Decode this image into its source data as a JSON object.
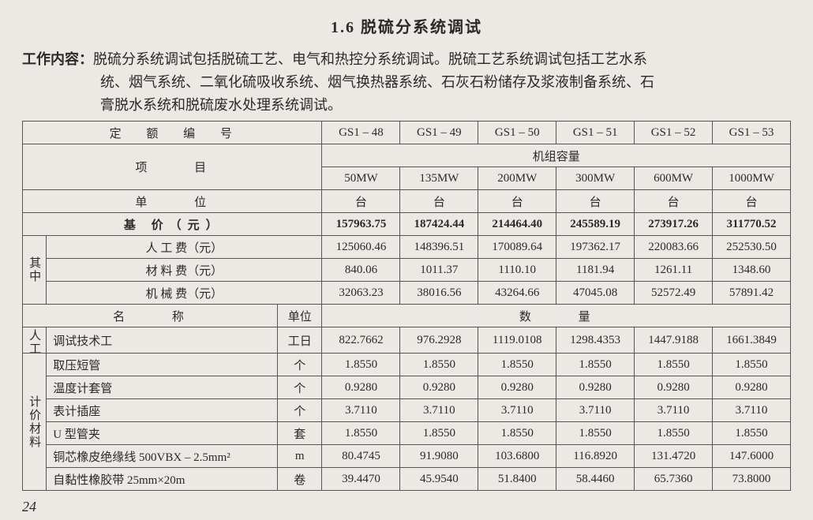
{
  "title": "1.6  脱硫分系统调试",
  "desc_label": "工作内容：",
  "desc_line1": "脱硫分系统调试包括脱硫工艺、电气和热控分系统调试。脱硫工艺系统调试包括工艺水系",
  "desc_line2": "统、烟气系统、二氧化硫吸收系统、烟气换热器系统、石灰石粉储存及浆液制备系统、石",
  "desc_line3": "膏脱水系统和脱硫废水处理系统调试。",
  "header": {
    "quota_no": "定 额 编 号",
    "project": "项    目",
    "unit": "单    位",
    "base_price": "基   价（元）",
    "capacity": "机组容量",
    "name": "名    称",
    "unit2": "单位",
    "quantity": "数    量"
  },
  "side": {
    "qizhong": "其中",
    "rengong": "人工",
    "jijia": "计价材料"
  },
  "codes": [
    "GS1 – 48",
    "GS1 – 49",
    "GS1 – 50",
    "GS1 – 51",
    "GS1 – 52",
    "GS1 – 53"
  ],
  "capacities": [
    "50MW",
    "135MW",
    "200MW",
    "300MW",
    "600MW",
    "1000MW"
  ],
  "unit_tai": "台",
  "base": [
    "157963.75",
    "187424.44",
    "214464.40",
    "245589.19",
    "273917.26",
    "311770.52"
  ],
  "costs": {
    "labor_label": "人  工  费（元）",
    "material_label": "材  料  费（元）",
    "machine_label": "机  械  费（元）",
    "labor": [
      "125060.46",
      "148396.51",
      "170089.64",
      "197362.17",
      "220083.66",
      "252530.50"
    ],
    "material": [
      "840.06",
      "1011.37",
      "1110.10",
      "1181.94",
      "1261.11",
      "1348.60"
    ],
    "machine": [
      "32063.23",
      "38016.56",
      "43264.66",
      "47045.08",
      "52572.49",
      "57891.42"
    ]
  },
  "items": [
    {
      "cat": "labor",
      "name": "调试技术工",
      "unit": "工日",
      "v": [
        "822.7662",
        "976.2928",
        "1119.0108",
        "1298.4353",
        "1447.9188",
        "1661.3849"
      ]
    },
    {
      "cat": "mat",
      "name": "取压短管",
      "unit": "个",
      "v": [
        "1.8550",
        "1.8550",
        "1.8550",
        "1.8550",
        "1.8550",
        "1.8550"
      ]
    },
    {
      "cat": "mat",
      "name": "温度计套管",
      "unit": "个",
      "v": [
        "0.9280",
        "0.9280",
        "0.9280",
        "0.9280",
        "0.9280",
        "0.9280"
      ]
    },
    {
      "cat": "mat",
      "name": "表计插座",
      "unit": "个",
      "v": [
        "3.7110",
        "3.7110",
        "3.7110",
        "3.7110",
        "3.7110",
        "3.7110"
      ]
    },
    {
      "cat": "mat",
      "name": "U 型管夹",
      "unit": "套",
      "v": [
        "1.8550",
        "1.8550",
        "1.8550",
        "1.8550",
        "1.8550",
        "1.8550"
      ]
    },
    {
      "cat": "mat",
      "name": "铜芯橡皮绝缘线   500VBX – 2.5mm²",
      "unit": "m",
      "v": [
        "80.4745",
        "91.9080",
        "103.6800",
        "116.8920",
        "131.4720",
        "147.6000"
      ]
    },
    {
      "cat": "mat",
      "name": "自黏性橡胶带   25mm×20m",
      "unit": "卷",
      "v": [
        "39.4470",
        "45.9540",
        "51.8400",
        "58.4460",
        "65.7360",
        "73.8000"
      ]
    }
  ],
  "page_number": "24",
  "colors": {
    "bg": "#ece9e4",
    "border": "#555",
    "text": "#2a2a2a"
  }
}
